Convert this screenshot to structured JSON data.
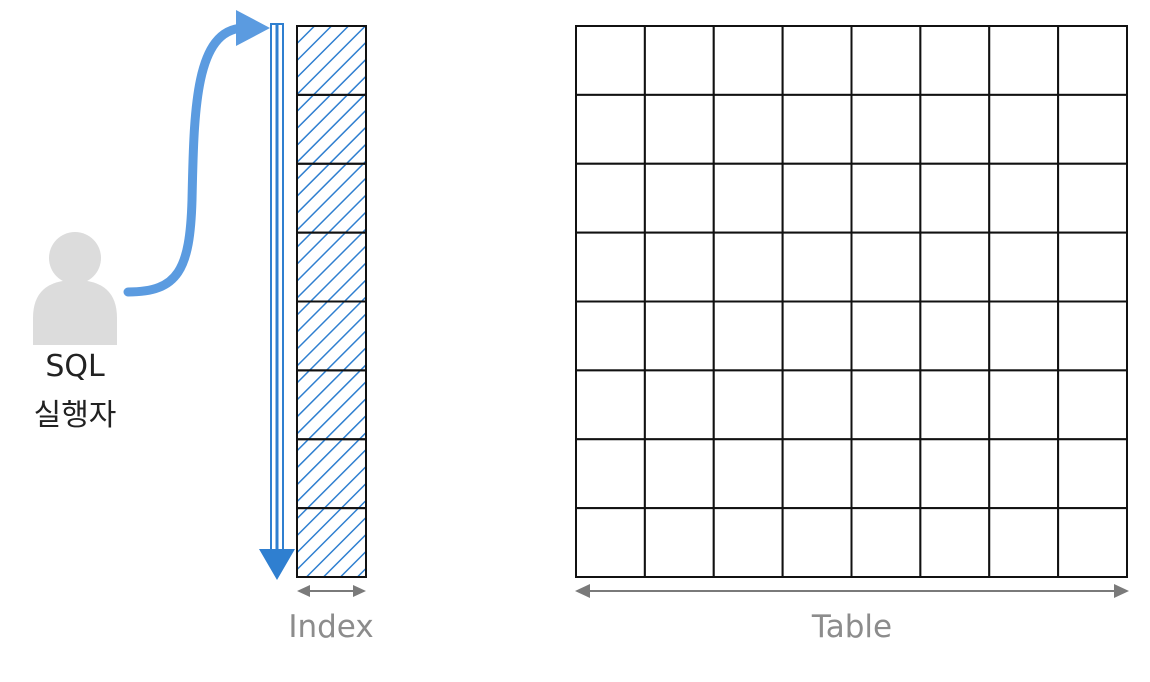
{
  "actor": {
    "label_line1": "SQL",
    "label_line2": "실행자",
    "icon": "person-icon",
    "color": "#dcdcdc"
  },
  "index": {
    "label": "Index",
    "cell_count": 8,
    "hatched": true,
    "hatch_color": "#2f7fd0"
  },
  "table": {
    "label": "Table",
    "rows": 8,
    "columns": 8
  },
  "scan_arrow": {
    "direction": "top-to-bottom",
    "color": "#2f7fd0"
  },
  "access_arrow": {
    "from": "actor",
    "to": "index-top",
    "color": "#5b9be0"
  },
  "width_arrow_color": "#7a7a7a",
  "caption_color": "#8c8c8c"
}
